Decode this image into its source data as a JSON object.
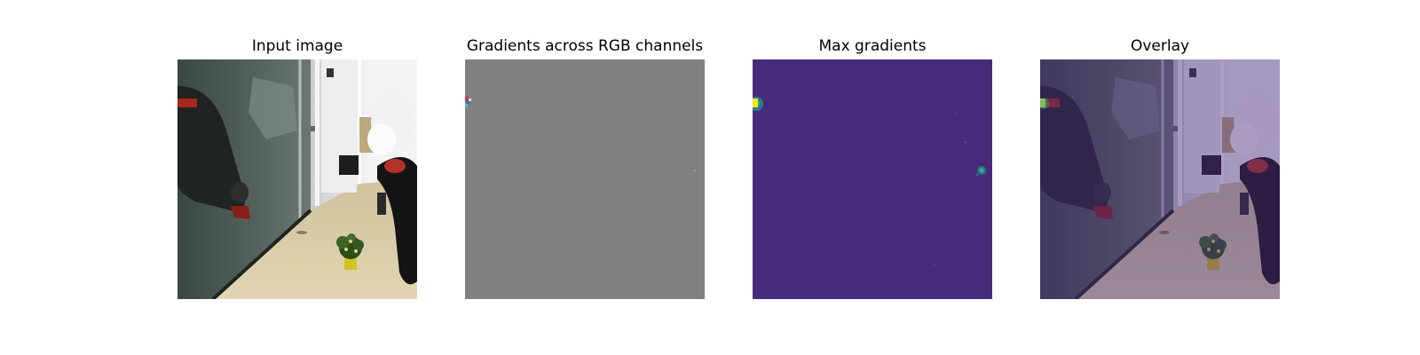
{
  "figure": {
    "panels": [
      {
        "title": "Input image",
        "content": "camera-photo"
      },
      {
        "title": "Gradients across RGB channels",
        "content": "gradient-map-gray"
      },
      {
        "title": "Max gradients",
        "content": "gradient-heatmap-viridis"
      },
      {
        "title": "Overlay",
        "content": "photo-with-heatmap-overlay"
      }
    ],
    "colors": {
      "gray_background": "#808080",
      "viridis_low": "#472b7a",
      "viridis_high": "#f3e51e",
      "overlay_tint": "#7e66b8"
    }
  }
}
